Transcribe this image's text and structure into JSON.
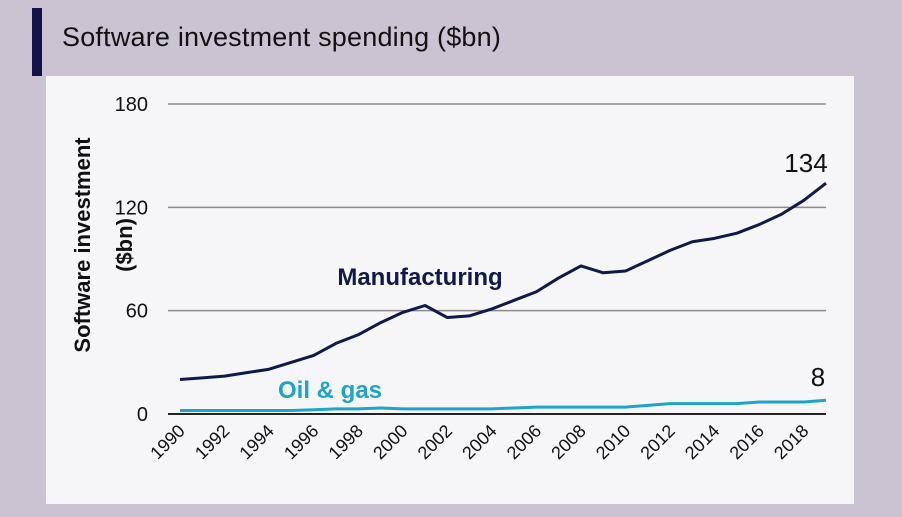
{
  "header": {
    "title": "Software investment spending ($bn)"
  },
  "colors": {
    "accent": "#12124a",
    "manufacturing": "#0f1a4a",
    "oil_gas": "#1ea3c9",
    "grid": "#8c8c8c"
  },
  "chart_data": {
    "type": "line",
    "title": "Software investment spending ($bn)",
    "xlabel": "",
    "ylabel_line1": "Software investment",
    "ylabel_line2": "($bn)",
    "ylim": [
      0,
      180
    ],
    "yticks": [
      0,
      60,
      120,
      180
    ],
    "x": [
      1990,
      1991,
      1992,
      1993,
      1994,
      1995,
      1996,
      1997,
      1998,
      1999,
      2000,
      2001,
      2002,
      2003,
      2004,
      2005,
      2006,
      2007,
      2008,
      2009,
      2010,
      2011,
      2012,
      2013,
      2014,
      2015,
      2016,
      2017,
      2018,
      2019
    ],
    "xtick_labels": [
      "1990",
      "1992",
      "1994",
      "1996",
      "1998",
      "2000",
      "2002",
      "2004",
      "2006",
      "2008",
      "2010",
      "2012",
      "2014",
      "2016",
      "2018"
    ],
    "series": [
      {
        "name": "Manufacturing",
        "values": [
          20,
          21,
          22,
          24,
          26,
          30,
          34,
          41,
          46,
          53,
          59,
          63,
          56,
          57,
          61,
          66,
          71,
          79,
          86,
          82,
          83,
          89,
          95,
          100,
          102,
          105,
          110,
          116,
          124,
          134
        ],
        "end_label": "134"
      },
      {
        "name": "Oil & gas",
        "values": [
          2,
          2,
          2,
          2,
          2,
          2,
          2.5,
          3,
          3,
          3.5,
          3,
          3,
          3,
          3,
          3,
          3.5,
          4,
          4,
          4,
          4,
          4,
          5,
          6,
          6,
          6,
          6,
          7,
          7,
          7,
          8
        ],
        "end_label": "8"
      }
    ]
  }
}
